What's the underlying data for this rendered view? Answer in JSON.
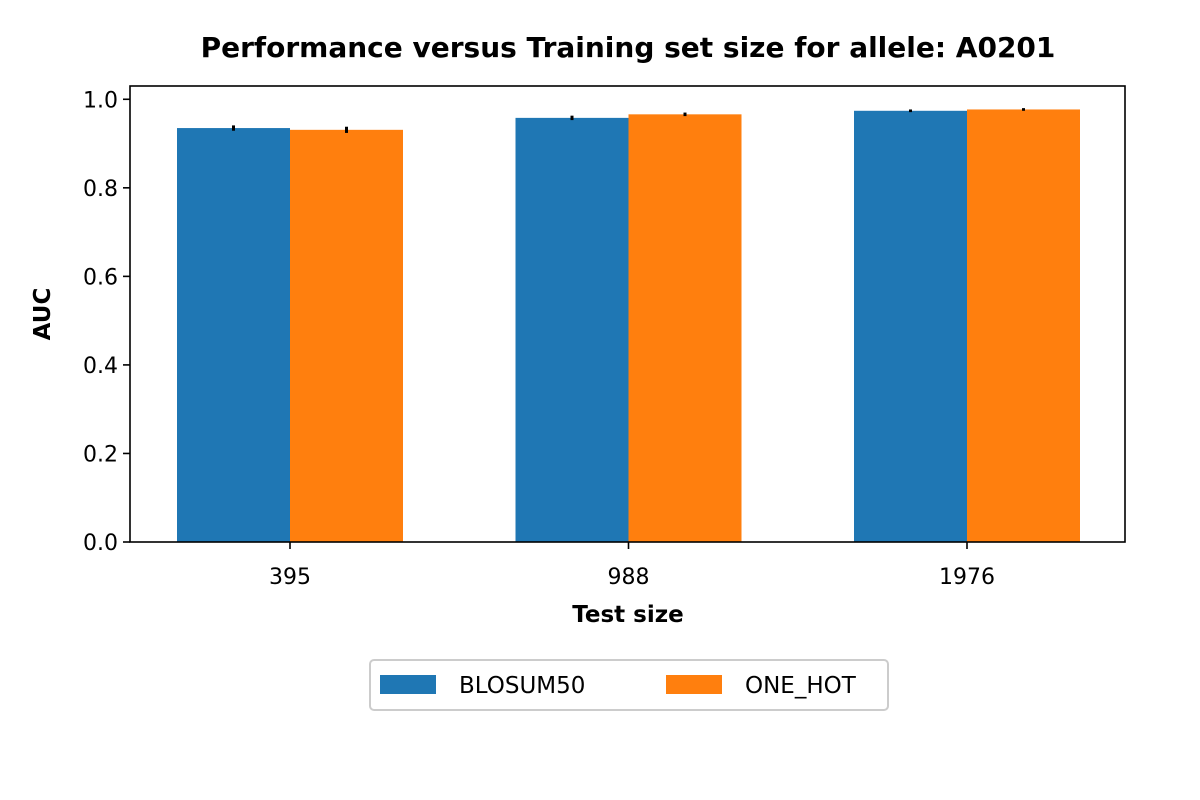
{
  "chart_data": {
    "type": "bar",
    "title": "Performance versus Training set size for allele: A0201",
    "xlabel": "Test size",
    "ylabel": "AUC",
    "categories": [
      "395",
      "988",
      "1976"
    ],
    "series": [
      {
        "name": "BLOSUM50",
        "color": "#1f77b4",
        "values": [
          0.935,
          0.958,
          0.974
        ],
        "errors": [
          0.006,
          0.005,
          0.003
        ]
      },
      {
        "name": "ONE_HOT",
        "color": "#ff7f0e",
        "values": [
          0.931,
          0.966,
          0.977
        ],
        "errors": [
          0.007,
          0.004,
          0.003
        ]
      }
    ],
    "ylim": [
      0.0,
      1.03
    ],
    "yticks": [
      "0.0",
      "0.2",
      "0.4",
      "0.6",
      "0.8",
      "1.0"
    ],
    "grid": false,
    "legend_position": "bottom-center"
  }
}
